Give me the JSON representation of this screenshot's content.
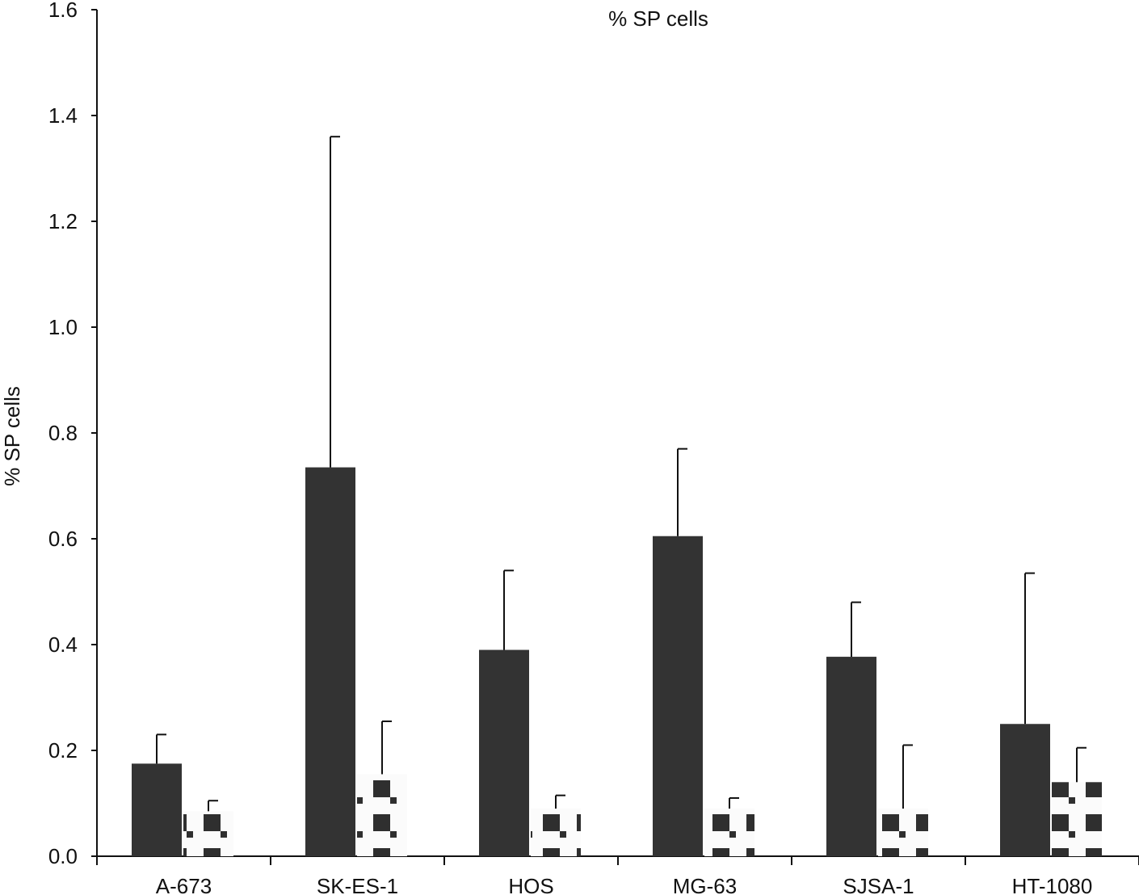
{
  "chart_data": {
    "type": "bar",
    "title": "% SP cells",
    "xlabel": "",
    "ylabel": "% SP cells",
    "ylim": [
      0,
      1.6
    ],
    "yticks": [
      "0.0",
      "0.2",
      "0.4",
      "0.6",
      "0.8",
      "1.0",
      "1.2",
      "1.4",
      "1.6"
    ],
    "categories": [
      "A-673",
      "SK-ES-1",
      "HOS",
      "MG-63",
      "SJSA-1",
      "HT-1080"
    ],
    "grid": false,
    "legend": "none",
    "series": [
      {
        "values": [
          0.175,
          0.735,
          0.39,
          0.605,
          0.377,
          0.25
        ],
        "errors": [
          0.055,
          0.625,
          0.15,
          0.165,
          0.103,
          0.285
        ],
        "color": "#333333",
        "pattern": "solid"
      },
      {
        "values": [
          0.085,
          0.155,
          0.09,
          0.09,
          0.09,
          0.14
        ],
        "errors": [
          0.02,
          0.1,
          0.025,
          0.02,
          0.12,
          0.065
        ],
        "color": "#333333",
        "pattern": "diagonal-checker"
      }
    ]
  }
}
